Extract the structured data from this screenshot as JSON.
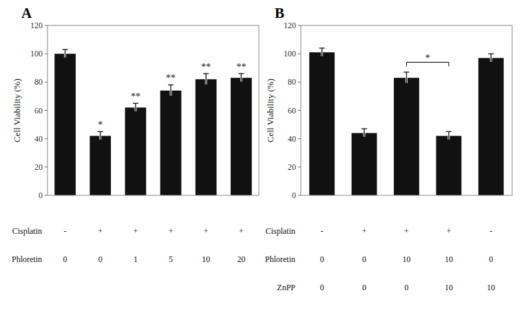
{
  "chart_data": [
    {
      "type": "bar",
      "title": "A",
      "categories": [
        null,
        null,
        null,
        null,
        null,
        null
      ],
      "values": [
        100,
        42,
        62,
        74,
        82,
        83
      ],
      "errors": [
        3,
        3,
        3,
        4,
        4,
        3
      ],
      "annotations": [
        null,
        "*",
        "**",
        "**",
        "**",
        "**"
      ],
      "rows": [
        {
          "name": "Cisplatin",
          "values": [
            "-",
            "+",
            "+",
            "+",
            "+",
            "+"
          ]
        },
        {
          "name": "Phloretin",
          "values": [
            "0",
            "0",
            "1",
            "5",
            "10",
            "20"
          ]
        }
      ],
      "y_label": "Cell Viability (%)",
      "ylim": [
        0,
        120
      ],
      "yticks": [
        0,
        20,
        40,
        60,
        80,
        100,
        120
      ],
      "color": "#111111",
      "grid": false
    },
    {
      "type": "bar",
      "title": "B",
      "categories": [
        null,
        null,
        null,
        null,
        null
      ],
      "values": [
        101,
        44,
        83,
        42,
        97
      ],
      "errors": [
        3,
        3,
        4,
        3,
        3
      ],
      "rows": [
        {
          "name": "Cisplatin",
          "values": [
            "-",
            "+",
            "+",
            "+",
            "-"
          ]
        },
        {
          "name": "Phloretin",
          "values": [
            "0",
            "0",
            "10",
            "10",
            "0"
          ]
        },
        {
          "name": "ZnPP",
          "values": [
            "0",
            "0",
            "0",
            "10",
            "10"
          ]
        }
      ],
      "bracket": {
        "from": 2,
        "to": 3,
        "y": 94,
        "text": "*"
      },
      "y_label": "Cell Viability (%)",
      "ylim": [
        0,
        120
      ],
      "yticks": [
        0,
        20,
        40,
        60,
        80,
        100,
        120
      ],
      "color": "#111111",
      "grid": false
    }
  ]
}
